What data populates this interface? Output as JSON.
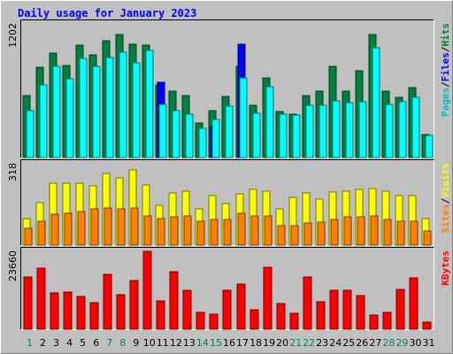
{
  "chart_data": {
    "type": "bar",
    "title": "Daily usage for January 2023",
    "categories": [
      "1",
      "2",
      "3",
      "4",
      "5",
      "6",
      "7",
      "8",
      "9",
      "10",
      "11",
      "12",
      "13",
      "14",
      "15",
      "16",
      "17",
      "18",
      "19",
      "20",
      "21",
      "22",
      "23",
      "24",
      "25",
      "26",
      "27",
      "28",
      "29",
      "30",
      "31"
    ],
    "weekend_days": [
      1,
      7,
      8,
      14,
      15,
      21,
      22,
      28,
      29
    ],
    "panels": [
      {
        "id": "hits-files-pages",
        "ymax_label": "1202",
        "ymax": 1202,
        "legend": [
          "Pages",
          "/",
          "Files",
          "/",
          "Hits"
        ],
        "series": [
          {
            "name": "Hits",
            "color": "#008040",
            "values": [
              560,
              810,
              940,
              830,
              1010,
              920,
              1050,
              1110,
              1020,
              1010,
              650,
              600,
              560,
              310,
              420,
              550,
              820,
              470,
              720,
              410,
              390,
              560,
              600,
              820,
              600,
              780,
              1110,
              600,
              540,
              630,
              210
            ]
          },
          {
            "name": "Files",
            "color": "#0000ff",
            "values": [
              0,
              0,
              0,
              0,
              0,
              0,
              0,
              0,
              0,
              0,
              680,
              0,
              0,
              0,
              280,
              0,
              1020,
              0,
              0,
              0,
              0,
              0,
              0,
              0,
              0,
              0,
              0,
              0,
              0,
              0,
              0
            ]
          },
          {
            "name": "Pages",
            "color": "#00ffff",
            "values": [
              420,
              650,
              820,
              710,
              890,
              820,
              900,
              950,
              850,
              960,
              480,
              420,
              390,
              260,
              340,
              460,
              720,
              400,
              640,
              390,
              380,
              470,
              470,
              510,
              490,
              500,
              990,
              480,
              500,
              540,
              200
            ]
          }
        ]
      },
      {
        "id": "visits-sites",
        "ymax_label": "318",
        "ymax": 318,
        "legend": [
          "Sites",
          "/",
          "Visits"
        ],
        "series": [
          {
            "name": "Visits",
            "color": "#ffff00",
            "values": [
              105,
              165,
              242,
              242,
              242,
              232,
              280,
              262,
              293,
              235,
              156,
              205,
              212,
              142,
              195,
              162,
              200,
              217,
              210,
              142,
              185,
              205,
              180,
              207,
              212,
              217,
              220,
              212,
              192,
              192,
              105
            ]
          },
          {
            "name": "Sites",
            "color": "#ff8000",
            "values": [
              65,
              95,
              120,
              125,
              130,
              140,
              145,
              140,
              145,
              115,
              102,
              110,
              115,
              95,
              100,
              100,
              125,
              115,
              115,
              75,
              75,
              85,
              90,
              100,
              110,
              110,
              115,
              100,
              95,
              95,
              55
            ]
          }
        ]
      },
      {
        "id": "kbytes",
        "ymax_label": "23660",
        "ymax": 23660,
        "legend": [
          "KBytes"
        ],
        "series": [
          {
            "name": "KBytes",
            "color": "#ff0000",
            "values": [
              15800,
              18600,
              10900,
              11300,
              10000,
              8000,
              16600,
              10600,
              14800,
              23660,
              8700,
              17500,
              11700,
              5100,
              4500,
              11800,
              13800,
              5800,
              18800,
              7800,
              4900,
              15800,
              8300,
              11700,
              11800,
              10200,
              4400,
              5200,
              12000,
              15600,
              2200
            ]
          }
        ]
      }
    ]
  }
}
